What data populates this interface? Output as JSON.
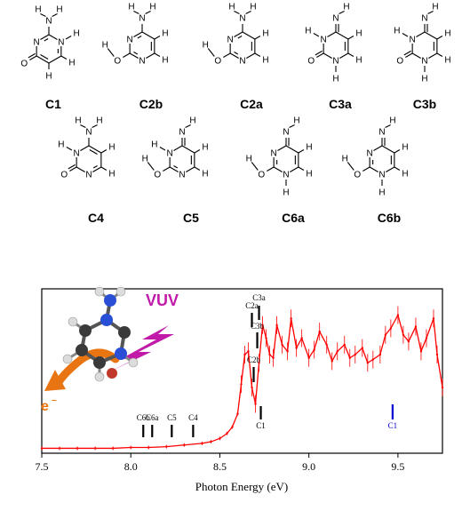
{
  "tautomers": [
    {
      "id": "C1",
      "ring": [
        "C",
        "N",
        "C",
        "C",
        "C",
        "N"
      ],
      "subs": {
        "C1": "NH2",
        "C3": "O",
        "N6": "H",
        "C4": "H",
        "C5": "H"
      },
      "dbl": [
        1,
        3,
        5
      ],
      "exo_double": [
        3
      ],
      "exo_single": [
        1
      ]
    },
    {
      "id": "C2b",
      "ring": [
        "C",
        "N",
        "C",
        "N",
        "C",
        "C"
      ],
      "subs": {
        "C1": "NH2",
        "C3": "OH",
        "C5": "H",
        "C6": "H"
      },
      "dbl": [
        1,
        3,
        5
      ],
      "exo_double": [],
      "exo_single": [
        1,
        3
      ]
    },
    {
      "id": "C2a",
      "ring": [
        "C",
        "N",
        "C",
        "N",
        "C",
        "C"
      ],
      "subs": {
        "C1": "NH2",
        "C3": "OH",
        "C5": "H",
        "C6": "H"
      },
      "dbl": [
        1,
        3,
        5
      ],
      "exo_double": [],
      "exo_single": [
        1,
        3
      ]
    },
    {
      "id": "C3a",
      "ring": [
        "C",
        "N",
        "C",
        "N",
        "C",
        "C"
      ],
      "subs": {
        "C1": "NH",
        "C3": "O",
        "N2": "H",
        "N4": "H",
        "C5": "H",
        "C6": "H"
      },
      "dbl": [
        5
      ],
      "exo_double": [
        1,
        3
      ],
      "exo_single": []
    },
    {
      "id": "C3b",
      "ring": [
        "C",
        "N",
        "C",
        "N",
        "C",
        "C"
      ],
      "subs": {
        "C1": "NH",
        "C3": "O",
        "N2": "H",
        "N4": "H",
        "C5": "H",
        "C6": "H"
      },
      "dbl": [
        5
      ],
      "exo_double": [
        1,
        3
      ],
      "exo_single": []
    },
    {
      "id": "C4",
      "ring": [
        "C",
        "N",
        "C",
        "N",
        "C",
        "C"
      ],
      "subs": {
        "C1": "NH2",
        "C3": "O",
        "N2": "H",
        "C5": "H",
        "C6": "H"
      },
      "dbl": [
        4,
        6
      ],
      "exo_double": [
        3
      ],
      "exo_single": [
        1
      ]
    },
    {
      "id": "C5",
      "ring": [
        "C",
        "N",
        "C",
        "N",
        "C",
        "C"
      ],
      "subs": {
        "C1": "NH",
        "C3": "OH",
        "N2": "H",
        "C5": "H",
        "C6": "H"
      },
      "dbl": [
        3,
        5
      ],
      "exo_double": [
        1
      ],
      "exo_single": [
        3
      ]
    },
    {
      "id": "C6a",
      "ring": [
        "C",
        "N",
        "C",
        "N",
        "C",
        "C"
      ],
      "subs": {
        "C1": "NH",
        "C3": "OH",
        "N4": "H",
        "C5": "H",
        "C6": "H"
      },
      "dbl": [
        2,
        5
      ],
      "exo_double": [
        1
      ],
      "exo_single": [
        3
      ]
    },
    {
      "id": "C6b",
      "ring": [
        "C",
        "N",
        "C",
        "N",
        "C",
        "C"
      ],
      "subs": {
        "C1": "NH",
        "C3": "OH",
        "N4": "H",
        "C5": "H",
        "C6": "H"
      },
      "dbl": [
        2,
        5
      ],
      "exo_double": [
        1
      ],
      "exo_single": [
        3
      ]
    }
  ],
  "inset": {
    "vuv_label": "VUV",
    "electron_label": "e",
    "electron_sup": "−",
    "colors": {
      "vuv": "#c21aa8",
      "electron": "#e87511",
      "ring_c": "#3a3a3a",
      "ring_n": "#2a4fd6",
      "h": "#dcdcdc"
    }
  },
  "chart_data": {
    "type": "line",
    "xlabel": "Photon Energy (eV)",
    "ylabel": "",
    "xlim": [
      7.5,
      9.75
    ],
    "ylim": [
      0,
      1
    ],
    "xticks": [
      7.5,
      8.0,
      8.5,
      9.0,
      9.5
    ],
    "xtick_labels": [
      "7.5",
      "8.0",
      "8.5",
      "9.0",
      "9.5"
    ],
    "grid": false,
    "series": [
      {
        "color": "#ff0000",
        "x": [
          7.5,
          7.6,
          7.7,
          7.8,
          7.9,
          8.0,
          8.1,
          8.2,
          8.3,
          8.4,
          8.45,
          8.5,
          8.54,
          8.57,
          8.6,
          8.62,
          8.64,
          8.66,
          8.68,
          8.7,
          8.72,
          8.74,
          8.76,
          8.78,
          8.8,
          8.82,
          8.85,
          8.88,
          8.9,
          8.93,
          8.96,
          9.0,
          9.03,
          9.06,
          9.1,
          9.13,
          9.16,
          9.2,
          9.23,
          9.26,
          9.3,
          9.33,
          9.36,
          9.4,
          9.43,
          9.46,
          9.5,
          9.53,
          9.56,
          9.6,
          9.63,
          9.66,
          9.7,
          9.72,
          9.75
        ],
        "y": [
          0.03,
          0.03,
          0.03,
          0.03,
          0.03,
          0.035,
          0.035,
          0.04,
          0.05,
          0.06,
          0.07,
          0.09,
          0.12,
          0.16,
          0.24,
          0.42,
          0.6,
          0.62,
          0.4,
          0.3,
          0.55,
          0.78,
          0.7,
          0.6,
          0.58,
          0.78,
          0.66,
          0.62,
          0.82,
          0.64,
          0.7,
          0.58,
          0.63,
          0.74,
          0.66,
          0.56,
          0.62,
          0.66,
          0.58,
          0.6,
          0.64,
          0.55,
          0.57,
          0.6,
          0.72,
          0.76,
          0.84,
          0.72,
          0.68,
          0.77,
          0.62,
          0.7,
          0.82,
          0.6,
          0.4
        ]
      }
    ],
    "onset_markers": [
      {
        "label": "C6b",
        "x": 8.07,
        "color": "#000000"
      },
      {
        "label": "C6a",
        "x": 8.12,
        "color": "#000000"
      },
      {
        "label": "C5",
        "x": 8.23,
        "color": "#000000"
      },
      {
        "label": "C4",
        "x": 8.35,
        "color": "#000000"
      },
      {
        "label": "C2a",
        "x": 8.68,
        "color": "#000000"
      },
      {
        "label": "C3a",
        "x": 8.72,
        "color": "#000000"
      },
      {
        "label": "C3b",
        "x": 8.71,
        "color": "#000000"
      },
      {
        "label": "C2b",
        "x": 8.69,
        "color": "#000000"
      },
      {
        "label": "C1",
        "x": 8.73,
        "color": "#000000"
      },
      {
        "label": "C1",
        "x": 9.47,
        "color": "#0000cc"
      }
    ]
  }
}
